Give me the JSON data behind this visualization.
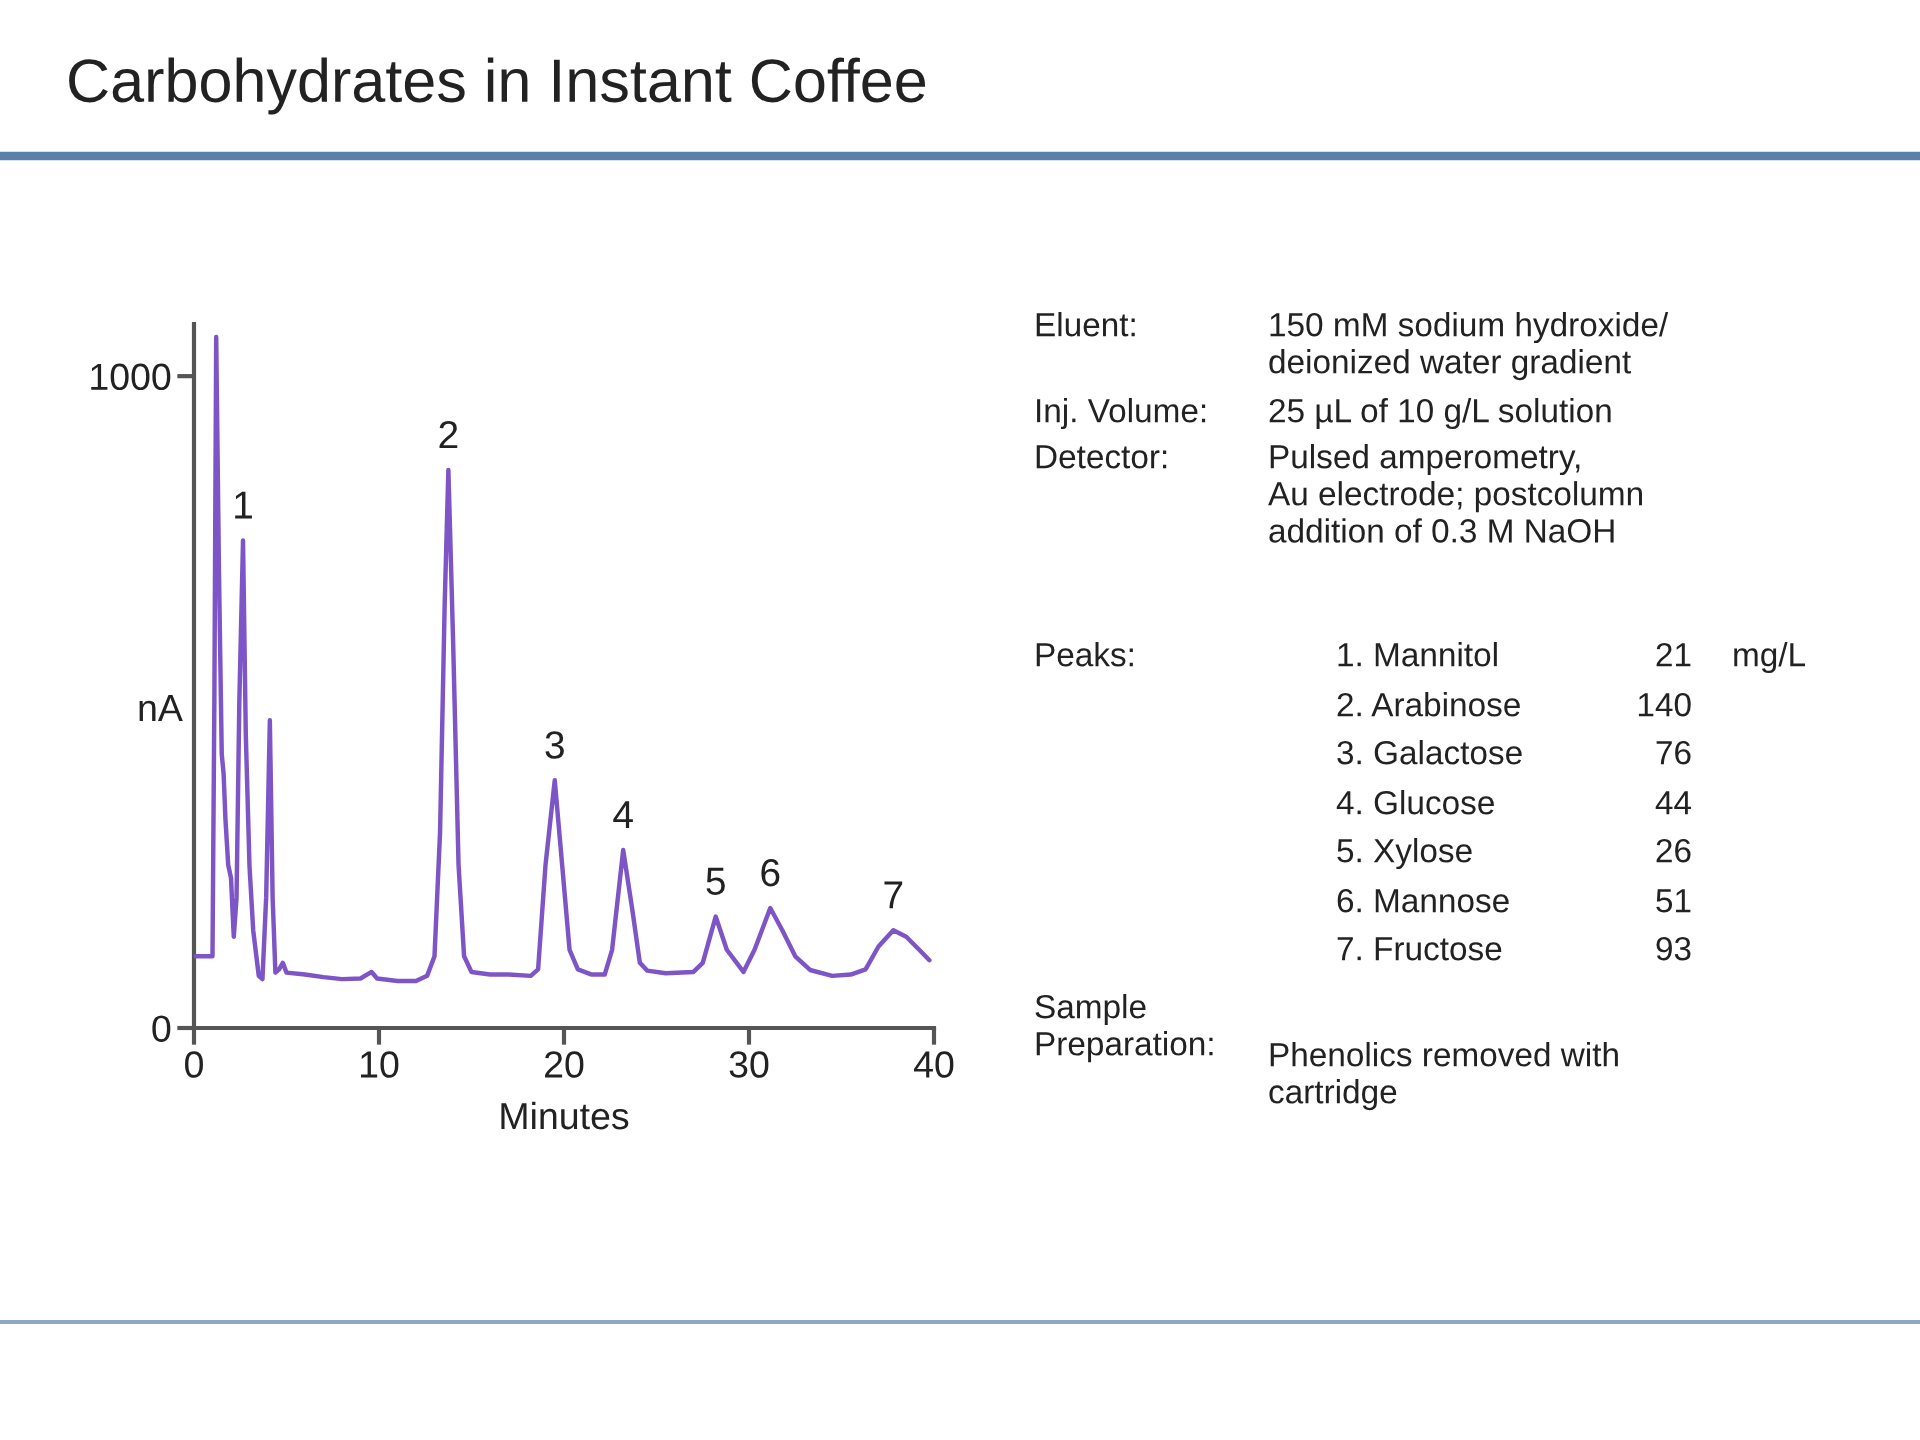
{
  "chart_data": {
    "type": "line",
    "title": "Carbohydrates in Instant Coffee",
    "xlabel": "Minutes",
    "ylabel": "nA",
    "x": [
      0.1,
      1.0,
      1.1,
      1.2,
      1.35,
      1.5,
      1.6,
      1.7,
      1.85,
      2.0,
      2.15,
      2.3,
      2.45,
      2.65,
      2.8,
      3.0,
      3.2,
      3.5,
      3.7,
      3.9,
      4.1,
      4.25,
      4.4,
      4.6,
      4.8,
      5.0,
      6,
      7,
      8,
      9,
      9.6,
      9.9,
      11,
      12,
      12.6,
      13.0,
      13.3,
      13.55,
      13.75,
      14.0,
      14.3,
      14.6,
      15.0,
      16,
      17,
      18.2,
      18.6,
      19.0,
      19.5,
      19.9,
      20.3,
      20.75,
      21.5,
      22.2,
      22.6,
      23.2,
      23.7,
      24.1,
      24.5,
      25.5,
      27.0,
      27.5,
      28.2,
      28.8,
      29.7,
      30.3,
      31.15,
      31.8,
      32.5,
      33.3,
      34.5,
      35.5,
      36.3,
      37.0,
      37.8,
      38.5,
      39.2,
      39.75
    ],
    "series": [
      {
        "color": "#7d55c7",
        "values": [
          110,
          110,
          500,
          1060,
          700,
          420,
          390,
          320,
          250,
          230,
          140,
          200,
          500,
          748,
          450,
          248,
          150,
          80,
          75,
          200,
          472,
          200,
          85,
          90,
          100,
          85,
          82,
          78,
          75,
          76,
          86,
          76,
          72,
          72,
          80,
          110,
          300,
          650,
          856,
          600,
          250,
          110,
          86,
          82,
          82,
          80,
          90,
          250,
          380,
          250,
          120,
          90,
          82,
          82,
          120,
          273,
          180,
          100,
          88,
          84,
          86,
          100,
          171,
          120,
          86,
          120,
          184,
          150,
          110,
          89,
          80,
          82,
          90,
          125,
          150,
          140,
          120,
          104
        ]
      }
    ],
    "xlim": [
      0,
      40
    ],
    "ylim": [
      0,
      1080
    ],
    "xticks": [
      0,
      10,
      20,
      30,
      40
    ],
    "yticks": [
      0,
      1000
    ],
    "grid": false,
    "annotations": [
      {
        "text": "1",
        "x": 2.65,
        "y": 748
      },
      {
        "text": "2",
        "x": 13.75,
        "y": 856
      },
      {
        "text": "3",
        "x": 19.5,
        "y": 380
      },
      {
        "text": "4",
        "x": 23.2,
        "y": 273
      },
      {
        "text": "5",
        "x": 28.2,
        "y": 171
      },
      {
        "text": "6",
        "x": 31.15,
        "y": 184
      },
      {
        "text": "7",
        "x": 37.8,
        "y": 150
      },
      "Eluent:",
      "150 mM sodium hydroxide/\ndeionized water gradient",
      "Inj. Volume:",
      "25 µL of 10 g/L solution",
      "Detector:",
      "Pulsed amperometry,\nAu electrode; postcolumn\naddition of 0.3 M NaOH",
      "Peaks:",
      "1. Mannitol",
      "21",
      "mg/L",
      "2. Arabinose",
      "140",
      "3. Galactose",
      "76",
      "4. Glucose",
      "44",
      "5. Xylose",
      "26",
      "6. Mannose",
      "51",
      "7. Fructose",
      "93",
      "Sample\nPreparation:",
      "Phenolics removed with\ncartridge"
    ]
  }
}
